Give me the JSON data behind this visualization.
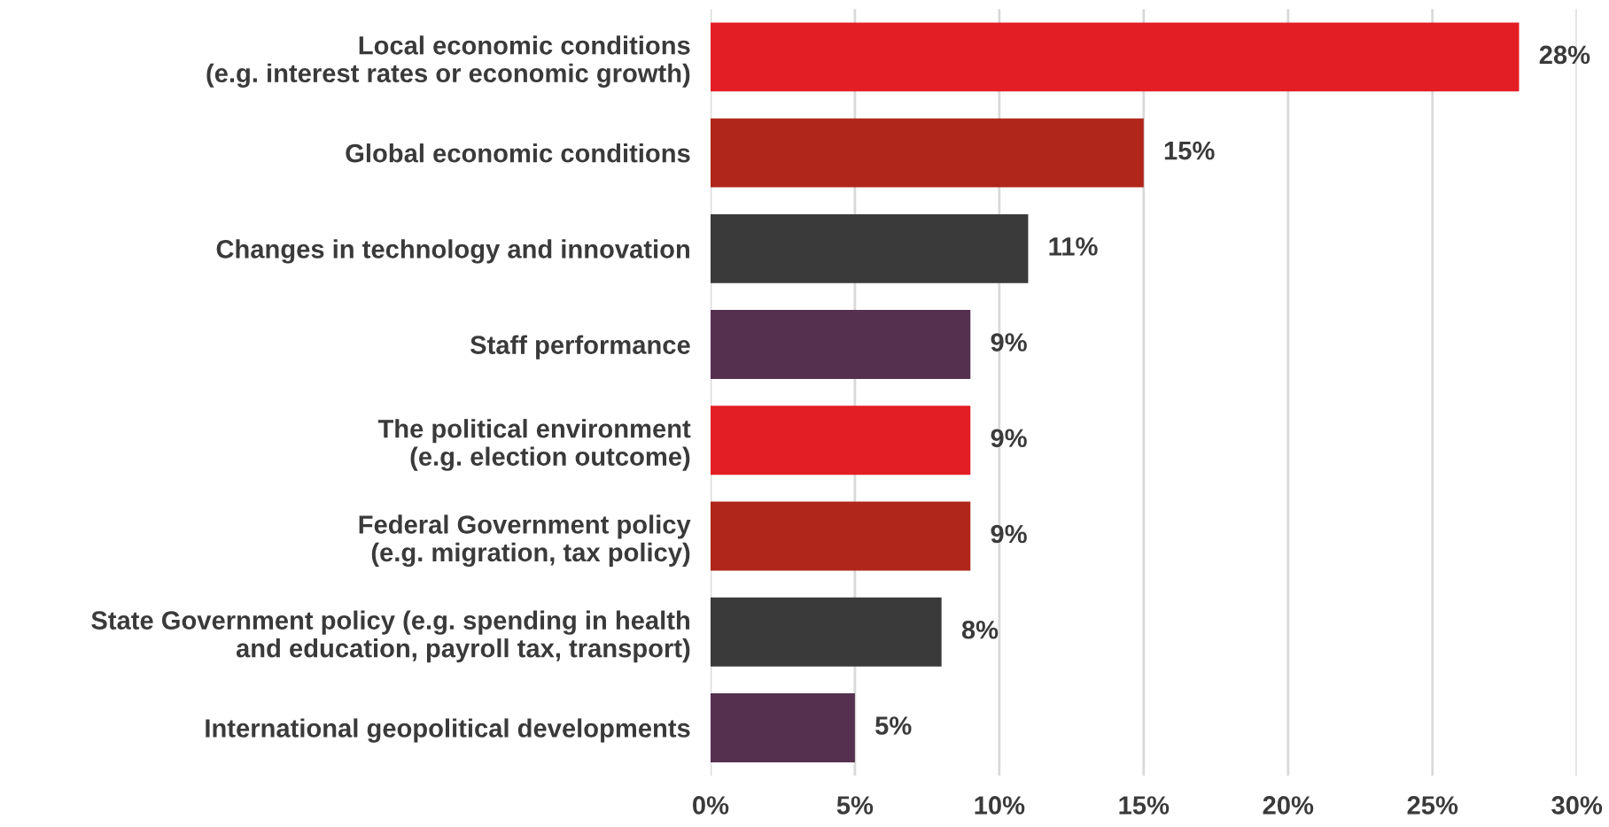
{
  "chart_data": {
    "type": "bar",
    "orientation": "horizontal",
    "categories": [
      "Local economic conditions\n(e.g. interest rates or economic growth)",
      "Global economic conditions",
      "Changes in technology and innovation",
      "Staff performance",
      "The political environment\n(e.g. election outcome)",
      "Federal Government policy\n(e.g. migration, tax policy)",
      "State Government policy (e.g. spending in health\nand education, payroll tax, transport)",
      "International geopolitical developments"
    ],
    "values": [
      28,
      15,
      11,
      9,
      9,
      9,
      8,
      5
    ],
    "colors": [
      "#e31e24",
      "#b0261a",
      "#3a3a3a",
      "#55304f",
      "#e31e24",
      "#b0261a",
      "#3a3a3a",
      "#55304f"
    ],
    "value_labels": [
      "28%",
      "15%",
      "11%",
      "9%",
      "9%",
      "9%",
      "8%",
      "5%"
    ],
    "xlim": [
      0,
      30
    ],
    "xticks": [
      {
        "value": 0,
        "label": "0%"
      },
      {
        "value": 5,
        "label": "5%"
      },
      {
        "value": 10,
        "label": "10%"
      },
      {
        "value": 15,
        "label": "15%"
      },
      {
        "value": 20,
        "label": "20%"
      },
      {
        "value": 25,
        "label": "25%"
      },
      {
        "value": 30,
        "label": "30%"
      }
    ],
    "grid": "x"
  }
}
